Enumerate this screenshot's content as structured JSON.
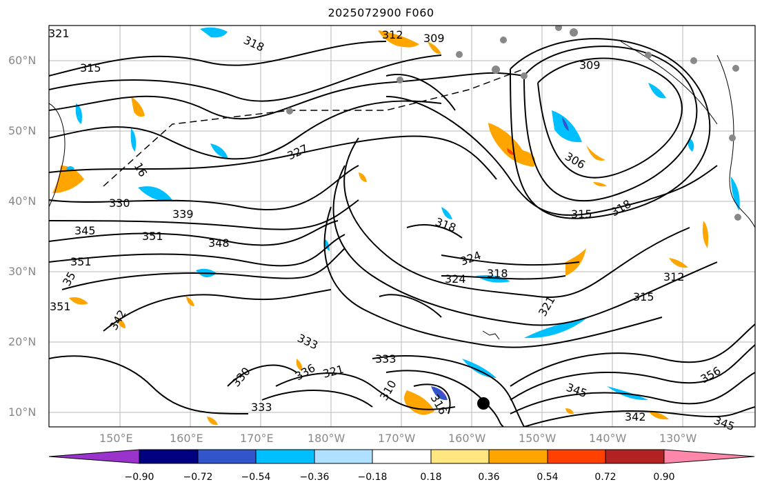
{
  "title": "2025072900 F060",
  "lat_labels": [
    "60°N",
    "50°N",
    "40°N",
    "30°N",
    "20°N",
    "10°N"
  ],
  "lon_labels": [
    "150°E",
    "160°E",
    "170°E",
    "180°W",
    "170°W",
    "160°W",
    "150°W",
    "140°W",
    "130°W"
  ],
  "contour_labels": [
    "321",
    "318",
    "315",
    "312",
    "309",
    "309",
    "327",
    "16",
    "306",
    "330",
    "339",
    "345",
    "351",
    "348",
    "318",
    "315",
    "318",
    "351",
    "324",
    "324",
    "318",
    "312",
    "315",
    "35",
    "351",
    "342",
    "321",
    "333",
    "333",
    "330",
    "336",
    "321",
    "333",
    "310",
    "316",
    "345",
    "356",
    "342",
    "345"
  ],
  "colorbar": {
    "tick_labels": [
      "−0.90",
      "−0.72",
      "−0.54",
      "−0.36",
      "−0.18",
      "0.18",
      "0.36",
      "0.54",
      "0.72",
      "0.90"
    ],
    "colors": [
      "#9933cc",
      "#000080",
      "#3355cc",
      "#00bfff",
      "#b0e0ff",
      "#ffffff",
      "#ffe680",
      "#ffa500",
      "#ff4000",
      "#b22222",
      "#ff88aa"
    ]
  }
}
